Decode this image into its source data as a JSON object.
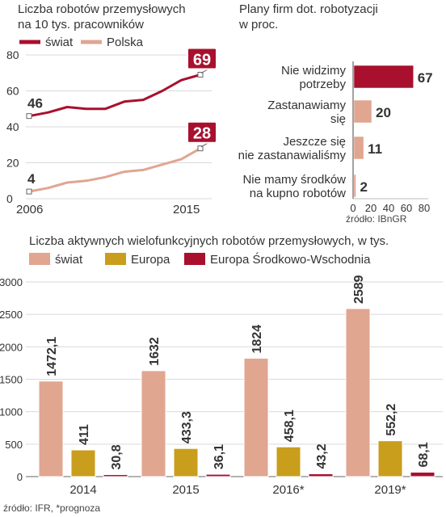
{
  "colors": {
    "world": "#a8102e",
    "poland": "#e0a690",
    "europe": "#c99e1c",
    "cee": "#a8102e",
    "grid": "#d9d9d9",
    "axis": "#333333"
  },
  "chart_data": [
    {
      "type": "line",
      "title": "Liczba robotów przemysłowych na 10 tys. pracowników",
      "x": [
        2006,
        2007,
        2008,
        2009,
        2010,
        2011,
        2012,
        2013,
        2014,
        2015
      ],
      "x_tick_labels": [
        "2006",
        "2015"
      ],
      "y_ticks": [
        0,
        20,
        40,
        60,
        80
      ],
      "ylim": [
        0,
        80
      ],
      "grid": true,
      "legend_position": "top",
      "series": [
        {
          "name": "świat",
          "values": [
            46,
            48,
            51,
            50,
            50,
            54,
            55,
            60,
            66,
            69
          ],
          "start_label": "46",
          "end_label": "69"
        },
        {
          "name": "Polska",
          "values": [
            4,
            6,
            9,
            10,
            12,
            15,
            16,
            19,
            22,
            28
          ],
          "start_label": "4",
          "end_label": "28"
        }
      ]
    },
    {
      "type": "bar",
      "orientation": "horizontal",
      "title": "Plany firm dot. robotyzacji w proc.",
      "categories": [
        "Nie widzimy potrzeby",
        "Zastanawiamy się",
        "Jeszcze się nie zastanawialiśmy",
        "Nie mamy środków na kupno robotów"
      ],
      "category_lines": [
        [
          "Nie widzimy",
          "potrzeby"
        ],
        [
          "Zastanawiamy",
          "się"
        ],
        [
          "Jeszcze się",
          "nie zastanawialiśmy"
        ],
        [
          "Nie mamy środków",
          "na kupno robotów"
        ]
      ],
      "values": [
        67,
        20,
        11,
        2
      ],
      "value_labels": [
        "67",
        "20",
        "11",
        "2"
      ],
      "x_ticks": [
        0,
        20,
        40,
        60,
        80
      ],
      "xlim": [
        0,
        80
      ],
      "source": "źródło: IBnGR"
    },
    {
      "type": "bar",
      "title": "Liczba aktywnych wielofunkcyjnych robotów przemysłowych, w tys.",
      "categories": [
        "2014",
        "2015",
        "2016*",
        "2019*"
      ],
      "y_ticks": [
        0,
        500,
        1000,
        1500,
        2000,
        2500,
        3000
      ],
      "ylim": [
        0,
        3000
      ],
      "grid": true,
      "legend_position": "top",
      "series": [
        {
          "name": "świat",
          "values": [
            1472.1,
            1632,
            1824,
            2589
          ],
          "labels": [
            "1472,1",
            "1632",
            "1824",
            "2589"
          ]
        },
        {
          "name": "Europa",
          "values": [
            411,
            433.3,
            458.1,
            552.2
          ],
          "labels": [
            "411",
            "433,3",
            "458,1",
            "552,2"
          ]
        },
        {
          "name": "Europa Środkowo-Wschodnia",
          "values": [
            30.8,
            36.1,
            43.2,
            68.1
          ],
          "labels": [
            "30,8",
            "36,1",
            "43,2",
            "68,1"
          ]
        }
      ],
      "source": "źródło: IFR, *prognoza"
    }
  ],
  "text": {
    "line_title_1": "Liczba robotów przemysłowych",
    "line_title_2": "na 10 tys. pracowników",
    "hbar_title_1": "Plany firm dot. robotyzacji",
    "hbar_title_2": "w proc.",
    "hbar_source": "źródło: IBnGR",
    "bar_title": "Liczba aktywnych wielofunkcyjnych robotów przemysłowych, w tys.",
    "bar_source": "źródło: IFR, *prognoza"
  }
}
